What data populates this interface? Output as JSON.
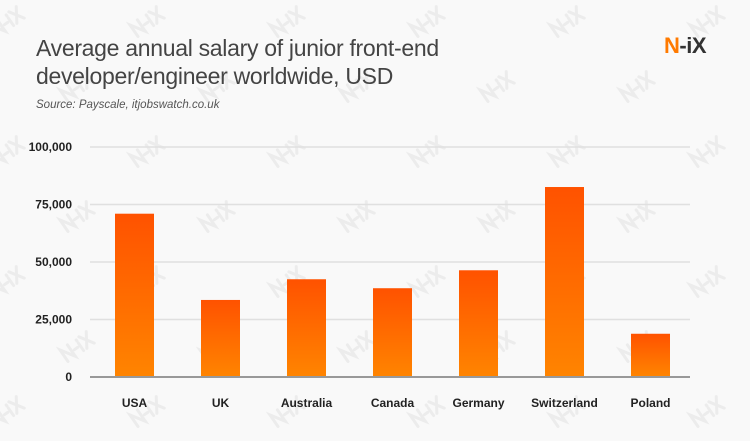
{
  "header": {
    "title_line1": "Average annual salary of junior front-end",
    "title_line2": "developer/engineer worldwide, USD",
    "source": "Source: Payscale, itjobswatch.co.uk",
    "logo_n": "N",
    "logo_rest": "-iX"
  },
  "watermark": "N-iX",
  "colors": {
    "bar_top": "#ff5200",
    "bar_bottom": "#ff8400",
    "grid": "#e0e0e0",
    "axis": "#999999",
    "logo_accent": "#ff7a00"
  },
  "chart_data": {
    "type": "bar",
    "title": "Average annual salary of junior front-end developer/engineer worldwide, USD",
    "categories": [
      "USA",
      "UK",
      "Australia",
      "Canada",
      "Germany",
      "Switzerland",
      "Poland"
    ],
    "values": [
      71000,
      33500,
      42500,
      38600,
      46400,
      82600,
      18800
    ],
    "ylim": [
      0,
      100000
    ],
    "yticks": [
      0,
      25000,
      50000,
      75000,
      100000
    ],
    "ytick_labels": [
      "0",
      "25,000",
      "50,000",
      "75,000",
      "100,000"
    ],
    "grid": true,
    "xlabel": "",
    "ylabel": ""
  }
}
